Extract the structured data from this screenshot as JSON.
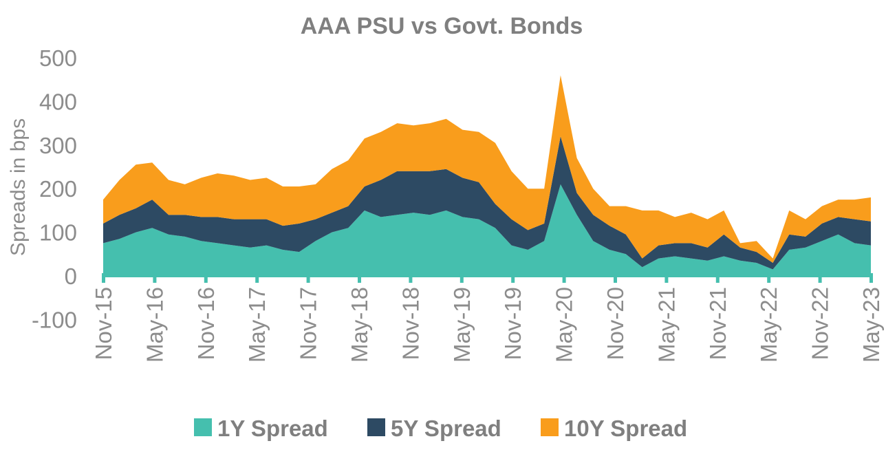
{
  "chart_data": {
    "type": "area",
    "title": "AAA PSU vs Govt. Bonds",
    "ylabel": "Spreads in bps",
    "xlabel": "",
    "ylim": [
      -100,
      500
    ],
    "yticks": [
      "-100",
      "0",
      "100",
      "200",
      "300",
      "400",
      "500"
    ],
    "stacked": true,
    "grid": false,
    "legend_position": "bottom",
    "x_tick_labels": [
      "Nov-15",
      "May-16",
      "Nov-16",
      "May-17",
      "Nov-17",
      "May-18",
      "Nov-18",
      "May-19",
      "Nov-19",
      "May-20",
      "Nov-20",
      "May-21",
      "Nov-21",
      "May-22",
      "Nov-22",
      "May-23"
    ],
    "x": [
      "Nov-15",
      "Jan-16",
      "Mar-16",
      "May-16",
      "Jul-16",
      "Sep-16",
      "Nov-16",
      "Jan-17",
      "Mar-17",
      "May-17",
      "Jul-17",
      "Sep-17",
      "Nov-17",
      "Jan-18",
      "Mar-18",
      "May-18",
      "Jul-18",
      "Sep-18",
      "Nov-18",
      "Jan-19",
      "Mar-19",
      "May-19",
      "Jul-19",
      "Sep-19",
      "Nov-19",
      "Jan-20",
      "Mar-20",
      "Apr-20",
      "May-20",
      "Jun-20",
      "Jul-20",
      "Sep-20",
      "Nov-20",
      "Jan-21",
      "Mar-21",
      "May-21",
      "Jul-21",
      "Sep-21",
      "Nov-21",
      "Jan-22",
      "Mar-22",
      "May-22",
      "Jul-22",
      "Sep-22",
      "Nov-22",
      "Jan-23",
      "Mar-23",
      "May-23"
    ],
    "series": [
      {
        "name": "1Y Spread",
        "color": "#45bfae",
        "values": [
          75,
          85,
          100,
          110,
          95,
          90,
          80,
          75,
          70,
          65,
          70,
          60,
          55,
          80,
          100,
          110,
          150,
          135,
          140,
          145,
          140,
          150,
          135,
          130,
          110,
          70,
          60,
          80,
          210,
          140,
          80,
          60,
          50,
          20,
          40,
          45,
          40,
          35,
          45,
          35,
          30,
          15,
          60,
          65,
          80,
          95,
          75,
          70
        ]
      },
      {
        "name": "5Y Spread",
        "color": "#2d4a63",
        "values": [
          45,
          55,
          55,
          65,
          45,
          50,
          55,
          60,
          60,
          65,
          60,
          55,
          65,
          50,
          45,
          50,
          55,
          85,
          100,
          95,
          100,
          95,
          90,
          85,
          55,
          60,
          45,
          40,
          110,
          50,
          60,
          55,
          45,
          20,
          30,
          30,
          35,
          30,
          50,
          30,
          25,
          15,
          35,
          25,
          40,
          40,
          55,
          55
        ]
      },
      {
        "name": "10Y Spread",
        "color": "#f99d1c",
        "values": [
          55,
          80,
          100,
          85,
          80,
          70,
          90,
          100,
          100,
          90,
          95,
          90,
          85,
          80,
          100,
          105,
          110,
          110,
          110,
          105,
          110,
          115,
          110,
          115,
          140,
          110,
          95,
          80,
          140,
          80,
          60,
          45,
          65,
          110,
          80,
          60,
          70,
          65,
          55,
          10,
          25,
          10,
          55,
          40,
          40,
          40,
          45,
          55
        ]
      }
    ]
  }
}
